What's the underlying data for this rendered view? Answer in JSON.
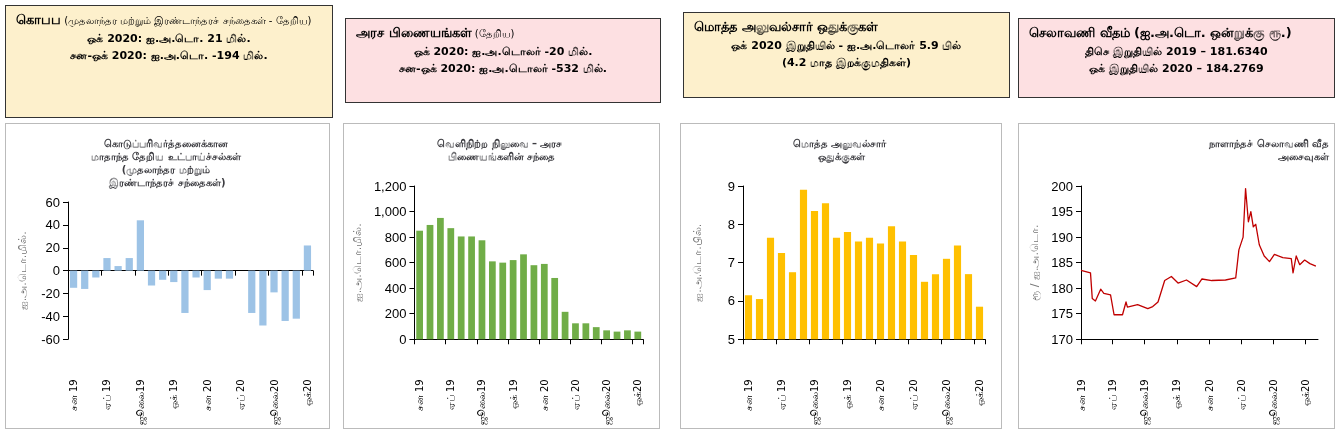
{
  "chart_data": [
    {
      "type": "other",
      "title": "கொபப",
      "subtitle": "(முதலாந்தர மற்றும் இரண்டாந்தரச் சந்தைகள் - தேறிய)",
      "annotations": [
        "ஒக் 2020: ஐ.அ.டொ. 21 மில்.",
        "சன-ஒக் 2020: ஐ.அ.டொ. -194 மில்."
      ]
    },
    {
      "type": "other",
      "title": "அரச பிணையங்கள்",
      "subtitle": "(தேறிய)",
      "annotations": [
        "ஒக் 2020: ஐ.அ.டொலர் -20 மில்.",
        "சன-ஒக் 2020: ஐ.அ.டொலர் -532 மில்."
      ]
    },
    {
      "type": "other",
      "title": "மொத்த அலுவல்சார் ஒதுக்குகள்",
      "annotations": [
        "ஒக் 2020 இறுதியில் - ஐ.அ.டொலர் 5.9 பில்",
        "(4.2 மாத இறக்குமதிகள்)"
      ]
    },
    {
      "type": "other",
      "title": "செலாவணி வீதம் (ஐ.அ.டொ. ஒன்றுக்கு ரூ.)",
      "annotations": [
        "திசெ இறுதியில் 2019 – 181.6340",
        "ஒக் இறுதியில் 2020 – 184.2769"
      ]
    },
    {
      "type": "bar",
      "title": "கொடுப்பரிவர்த்தனைக்கான மாதாந்த தேறிய உட்பாய்ச்சல்கள் (முதலாந்தர மற்றும் இரண்டாந்தரச் சந்தைகள்)",
      "ylabel": "ஐ.அ.டொ.மில்.",
      "categories": [
        "சன 19",
        null,
        null,
        "ஏப் 19",
        null,
        null,
        "ஜூலை19",
        null,
        null,
        "ஒக் 19",
        null,
        null,
        "சன 20",
        null,
        null,
        "ஏப் 20",
        null,
        null,
        "ஜூலை20",
        null,
        null,
        "ஒக்20"
      ],
      "values": [
        -15,
        -16,
        -6,
        11,
        4,
        11,
        44,
        -13,
        -8,
        -10,
        -37,
        -6,
        -17,
        -7,
        -7,
        null,
        -37,
        -48,
        -19,
        -44,
        -42,
        22
      ],
      "color": "#9dc3e6",
      "ylim": [
        -60,
        60
      ],
      "yticks": [
        -60,
        -40,
        -20,
        0,
        20,
        40,
        60
      ]
    },
    {
      "type": "bar",
      "title": "வெளிநிற்ற நிலுவை – அரச பிணையங்களின் சந்தை",
      "ylabel": "ஐ.அ.டொ.மில்.",
      "categories": [
        "சன 19",
        null,
        null,
        "ஏப் 19",
        null,
        null,
        "ஜூலை19",
        null,
        null,
        "ஒக் 19",
        null,
        null,
        "சன 20",
        null,
        null,
        "ஏப் 20",
        null,
        null,
        "ஜூலை20",
        null,
        null,
        "ஒக்20"
      ],
      "values": [
        850,
        895,
        950,
        870,
        805,
        805,
        775,
        610,
        600,
        620,
        665,
        580,
        590,
        480,
        215,
        125,
        125,
        95,
        70,
        60,
        70,
        60
      ],
      "color": "#70ad47",
      "ylim": [
        0,
        1200
      ],
      "yticks": [
        0,
        200,
        400,
        600,
        800,
        {
          "value": 1000,
          "label": "1,000"
        },
        {
          "value": 1200,
          "label": "1,200"
        }
      ]
    },
    {
      "type": "bar",
      "title": "மொத்த அலுவல்சார் ஒதுக்குகள்",
      "ylabel": "ஐ.அ.டொ.பில்.",
      "categories": [
        "சன 19",
        null,
        null,
        "ஏப் 19",
        null,
        null,
        "ஜூலை19",
        null,
        null,
        "ஒக் 19",
        null,
        null,
        "சன 20",
        null,
        null,
        "ஏப் 20",
        null,
        null,
        "ஜூலை20",
        null,
        null,
        "ஒக்20"
      ],
      "values": [
        6.15,
        6.05,
        7.65,
        7.25,
        6.75,
        8.9,
        8.35,
        8.55,
        7.65,
        7.8,
        7.55,
        7.65,
        7.5,
        7.95,
        7.55,
        7.2,
        6.5,
        6.7,
        7.1,
        7.45,
        6.7,
        5.85
      ],
      "color": "#ffc000",
      "ylim": [
        5,
        9
      ],
      "yticks": [
        5,
        6,
        7,
        8,
        9
      ]
    },
    {
      "type": "line",
      "title": "நாளாந்தச் செலாவணி வீத அசைவுகள்",
      "ylabel": "ரூ / ஐ.அ.டொ.",
      "color": "#c00000",
      "marker": "none",
      "x": [
        "2019-01-01",
        "2019-01-28",
        "2019-02-02",
        "2019-02-11",
        "2019-02-26",
        "2019-03-07",
        "2019-03-26",
        "2019-04-05",
        "2019-04-29",
        "2019-05-09",
        "2019-05-13",
        "2019-06-11",
        "2019-07-10",
        "2019-07-24",
        "2019-08-08",
        "2019-08-27",
        "2019-09-15",
        "2019-10-04",
        "2019-10-28",
        "2019-11-26",
        "2019-12-11",
        "2020-01-08",
        "2020-02-16",
        "2020-03-16",
        "2020-03-25",
        "2020-04-06",
        "2020-04-13",
        "2020-04-21",
        "2020-04-28",
        "2020-05-05",
        "2020-05-12",
        "2020-05-22",
        "2020-06-05",
        "2020-06-20",
        "2020-07-04",
        "2020-07-28",
        "2020-08-21",
        "2020-08-26",
        "2020-09-04",
        "2020-09-14",
        "2020-09-28",
        "2020-10-13",
        "2020-10-30"
      ],
      "values": [
        183.5,
        183,
        178,
        177.5,
        179.8,
        179,
        178.7,
        174.8,
        174.8,
        177.3,
        176.3,
        176.8,
        176,
        176.4,
        177.3,
        181.5,
        182.3,
        181,
        181.6,
        180.3,
        181.8,
        181.5,
        181.6,
        182,
        187.5,
        190,
        199.5,
        193,
        195,
        192,
        192.5,
        188.5,
        186.3,
        185.2,
        186.6,
        186,
        185.8,
        183,
        186.3,
        184.6,
        185.5,
        184.8,
        184.3
      ],
      "xlim": [
        "2019-01-01",
        "2020-11-05"
      ],
      "xticks": [
        {
          "value": "2019-01-01",
          "label": "சன 19"
        },
        {
          "value": "2019-04-01",
          "label": "ஏப் 19"
        },
        {
          "value": "2019-07-01",
          "label": "ஜூலை19"
        },
        {
          "value": "2019-10-01",
          "label": "ஒக் 19"
        },
        {
          "value": "2020-01-01",
          "label": "சன 20"
        },
        {
          "value": "2020-04-01",
          "label": "ஏப் 20"
        },
        {
          "value": "2020-07-01",
          "label": "ஜூலை20"
        },
        {
          "value": "2020-10-01",
          "label": "ஒக்20"
        }
      ],
      "ylim": [
        170,
        200
      ],
      "yticks": [
        170,
        175,
        180,
        185,
        190,
        195,
        200
      ]
    }
  ]
}
